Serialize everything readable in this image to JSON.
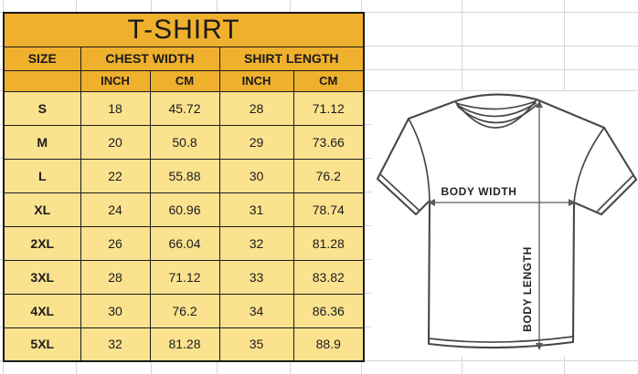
{
  "table": {
    "title": "T-SHIRT",
    "column_groups": [
      "SIZE",
      "CHEST WIDTH",
      "SHIRT LENGTH"
    ],
    "sub_headers": [
      "INCH",
      "CM",
      "INCH",
      "CM"
    ],
    "rows": [
      {
        "size": "S",
        "chest_inch": "18",
        "chest_cm": "45.72",
        "length_inch": "28",
        "length_cm": "71.12"
      },
      {
        "size": "M",
        "chest_inch": "20",
        "chest_cm": "50.8",
        "length_inch": "29",
        "length_cm": "73.66"
      },
      {
        "size": "L",
        "chest_inch": "22",
        "chest_cm": "55.88",
        "length_inch": "30",
        "length_cm": "76.2"
      },
      {
        "size": "XL",
        "chest_inch": "24",
        "chest_cm": "60.96",
        "length_inch": "31",
        "length_cm": "78.74"
      },
      {
        "size": "2XL",
        "chest_inch": "26",
        "chest_cm": "66.04",
        "length_inch": "32",
        "length_cm": "81.28"
      },
      {
        "size": "3XL",
        "chest_inch": "28",
        "chest_cm": "71.12",
        "length_inch": "33",
        "length_cm": "83.82"
      },
      {
        "size": "4XL",
        "chest_inch": "30",
        "chest_cm": "76.2",
        "length_inch": "34",
        "length_cm": "86.36"
      },
      {
        "size": "5XL",
        "chest_inch": "32",
        "chest_cm": "81.28",
        "length_inch": "35",
        "length_cm": "88.9"
      }
    ]
  },
  "diagram": {
    "body_width_label": "BODY WIDTH",
    "body_length_label": "BODY LENGTH"
  },
  "colors": {
    "header_gold": "#efb02d",
    "row_yellow": "#fbe28f",
    "table_border": "#1a1a1a",
    "gridline_gray": "#d6d6d6",
    "shirt_outline": "#474747",
    "text": "#1b1b1b"
  },
  "chart_data": {
    "type": "table",
    "title": "T-SHIRT",
    "columns": [
      "SIZE",
      "CHEST WIDTH INCH",
      "CHEST WIDTH CM",
      "SHIRT LENGTH INCH",
      "SHIRT LENGTH CM"
    ],
    "rows": [
      [
        "S",
        18,
        45.72,
        28,
        71.12
      ],
      [
        "M",
        20,
        50.8,
        29,
        73.66
      ],
      [
        "L",
        22,
        55.88,
        30,
        76.2
      ],
      [
        "XL",
        24,
        60.96,
        31,
        78.74
      ],
      [
        "2XL",
        26,
        66.04,
        32,
        81.28
      ],
      [
        "3XL",
        28,
        71.12,
        33,
        83.82
      ],
      [
        "4XL",
        30,
        76.2,
        34,
        86.36
      ],
      [
        "5XL",
        32,
        81.28,
        35,
        88.9
      ]
    ]
  }
}
